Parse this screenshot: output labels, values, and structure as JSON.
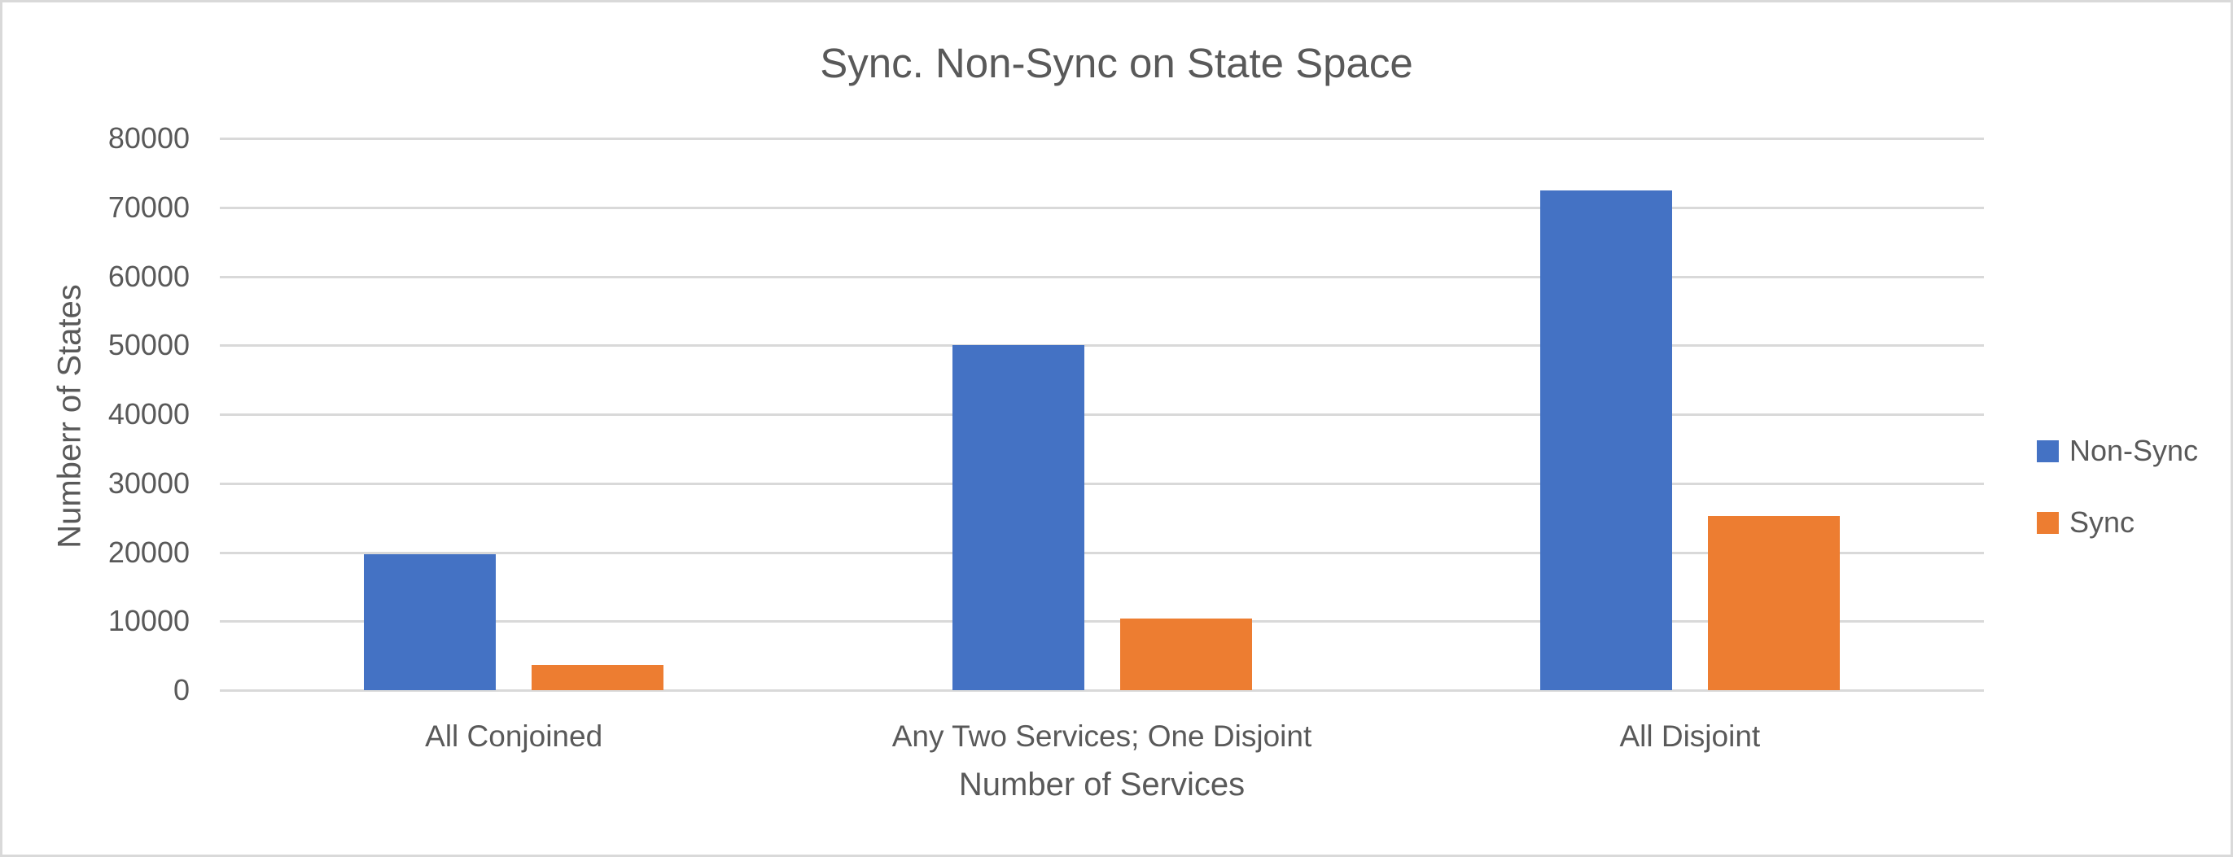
{
  "chart_data": {
    "type": "bar",
    "title": "Sync. Non-Sync on State Space",
    "xlabel": "Number of Services",
    "ylabel": "Numberr of States",
    "categories": [
      "All Conjoined",
      "Any Two Services; One Disjoint",
      "All Disjoint"
    ],
    "series": [
      {
        "name": "Non-Sync",
        "color": "#4472C4",
        "values": [
          19700,
          50000,
          72400
        ]
      },
      {
        "name": "Sync",
        "color": "#ED7D31",
        "values": [
          3700,
          10400,
          25200
        ]
      }
    ],
    "ylim": [
      0,
      80000
    ],
    "ytick_step": 10000,
    "yticks": [
      "0",
      "10000",
      "20000",
      "30000",
      "40000",
      "50000",
      "60000",
      "70000",
      "80000"
    ],
    "grid": true,
    "gridline_color": "#D9D9D9",
    "text_color": "#595959",
    "background_color": "#FFFFFF",
    "border_color": "#D9D9D9",
    "legend_position": "right"
  }
}
